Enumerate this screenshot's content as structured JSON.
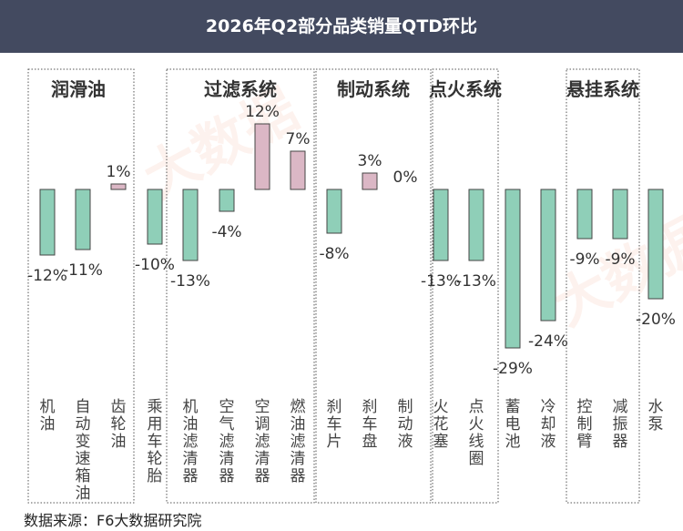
{
  "title": "2026年Q2部分品类销量QTD环比",
  "source": "数据来源：F6大数据研究院",
  "watermark": "大数据",
  "colors": {
    "header_bg": "#434a60",
    "positive": "#dbb7c5",
    "negative": "#8fcfb8",
    "border": "#555555"
  },
  "chart_data": {
    "type": "bar",
    "title": "2026年Q2部分品类销量QTD环比",
    "ylabel": "",
    "groups": [
      {
        "name": "润滑油",
        "categories": [
          "机油",
          "自动变速箱油",
          "齿轮油"
        ]
      },
      {
        "name": "",
        "categories": [
          "乘用车轮胎"
        ]
      },
      {
        "name": "过滤系统",
        "categories": [
          "机油滤清器",
          "空气滤清器",
          "空调滤清器",
          "燃油滤清器"
        ]
      },
      {
        "name": "制动系统",
        "categories": [
          "刹车片",
          "刹车盘",
          "制动液"
        ]
      },
      {
        "name": "点火系统",
        "categories": [
          "火花塞",
          "点火线圈"
        ]
      },
      {
        "name": "",
        "categories": [
          "蓄电池",
          "冷却液"
        ]
      },
      {
        "name": "悬挂系统",
        "categories": [
          "控制臂",
          "减振器"
        ]
      },
      {
        "name": "",
        "categories": [
          "水泵"
        ]
      }
    ],
    "categories": [
      "机油",
      "自动变速箱油",
      "齿轮油",
      "乘用车轮胎",
      "机油滤清器",
      "空气滤清器",
      "空调滤清器",
      "燃油滤清器",
      "刹车片",
      "刹车盘",
      "制动液",
      "火花塞",
      "点火线圈",
      "蓄电池",
      "冷却液",
      "控制臂",
      "减振器",
      "水泵"
    ],
    "values": [
      -12,
      -11,
      1,
      -10,
      -13,
      -4,
      12,
      7,
      -8,
      3,
      0,
      -13,
      -13,
      -29,
      -24,
      -9,
      -9,
      -20
    ],
    "labels": [
      "-12%",
      "-11%",
      "1%",
      "-10%",
      "-13%",
      "-4%",
      "12%",
      "7%",
      "-8%",
      "3%",
      "0%",
      "-13%",
      "-13%",
      "-29%",
      "-24%",
      "-9%",
      "-9%",
      "-20%"
    ],
    "unit": "%"
  }
}
